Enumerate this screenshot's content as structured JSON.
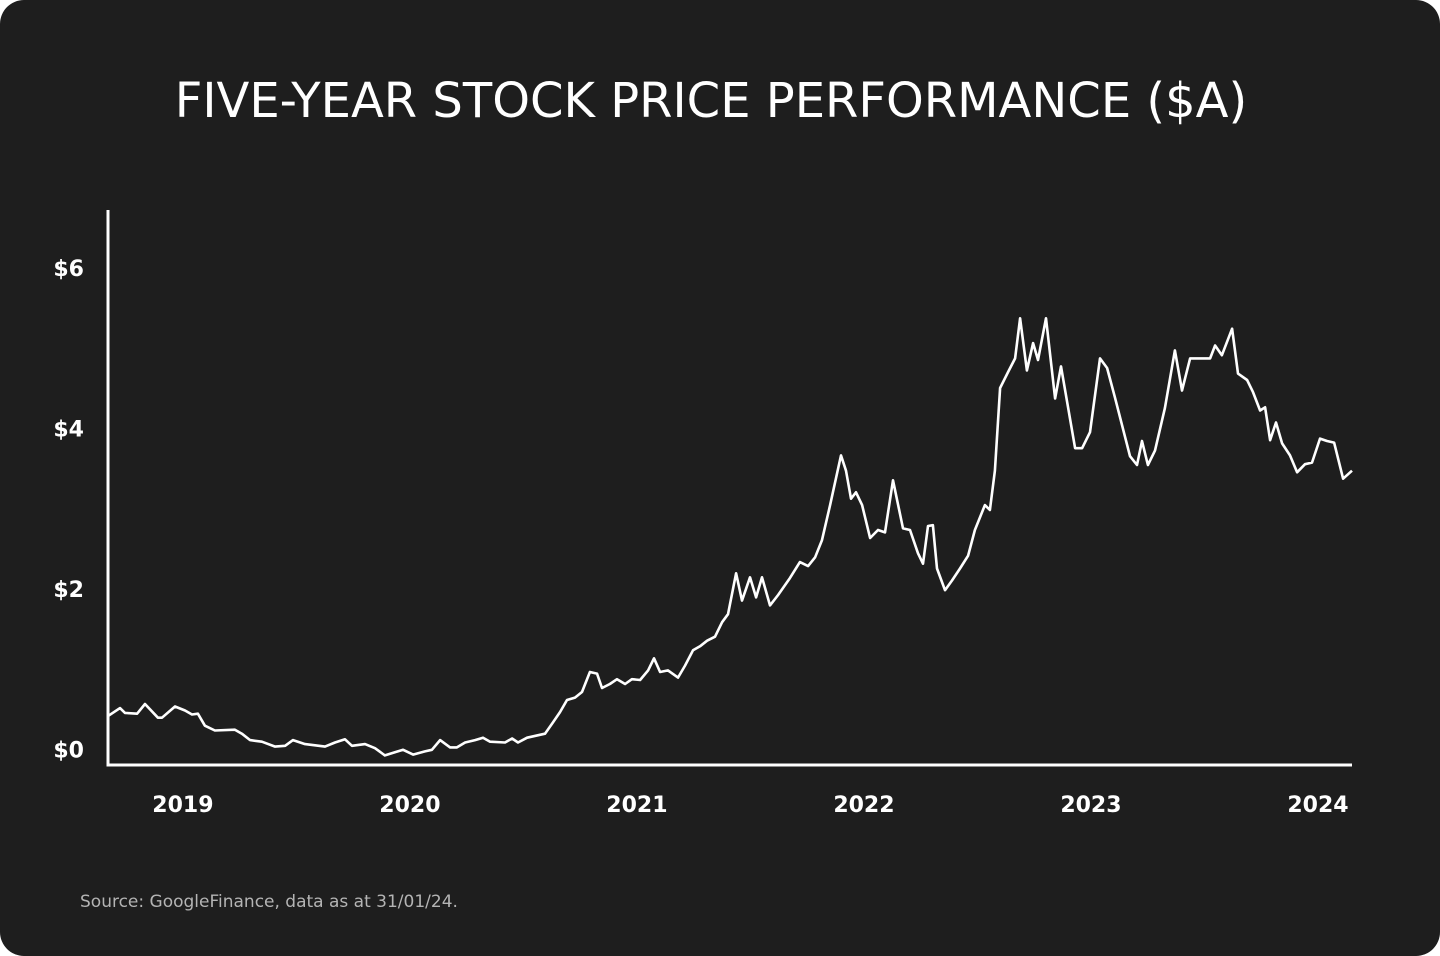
{
  "chart_data": {
    "type": "line",
    "title": "FIVE-YEAR STOCK PRICE PERFORMANCE ($A)",
    "source": "Source: GoogleFinance, data as at 31/01/24.",
    "color": "#ffffff",
    "xlim": [
      2018.67,
      2024.15
    ],
    "xticks": [
      2019,
      2020,
      2021,
      2022,
      2023,
      2024
    ],
    "ylim": [
      -0.17,
      6.75
    ],
    "yticks": [
      {
        "value": 0,
        "label": "$0"
      },
      {
        "value": 2,
        "label": "$2"
      },
      {
        "value": 4,
        "label": "$4"
      },
      {
        "value": 6,
        "label": "$6"
      }
    ],
    "grid": false,
    "x": [
      2018.67,
      2018.723,
      2018.745,
      2018.798,
      2018.833,
      2018.89,
      2018.908,
      2018.965,
      2019.009,
      2019.04,
      2019.066,
      2019.097,
      2019.141,
      2019.229,
      2019.26,
      2019.296,
      2019.348,
      2019.406,
      2019.45,
      2019.485,
      2019.538,
      2019.626,
      2019.67,
      2019.714,
      2019.745,
      2019.802,
      2019.846,
      2019.89,
      2019.934,
      2019.97,
      2020.014,
      2020.066,
      2020.097,
      2020.133,
      2020.177,
      2020.207,
      2020.243,
      2020.287,
      2020.322,
      2020.353,
      2020.419,
      2020.45,
      2020.476,
      2020.516,
      2020.595,
      2020.63,
      2020.661,
      2020.692,
      2020.727,
      2020.758,
      2020.793,
      2020.824,
      2020.846,
      2020.881,
      2020.912,
      2020.948,
      2020.978,
      2021.014,
      2021.049,
      2021.075,
      2021.102,
      2021.137,
      2021.181,
      2021.212,
      2021.247,
      2021.278,
      2021.309,
      2021.344,
      2021.375,
      2021.401,
      2021.437,
      2021.463,
      2021.498,
      2021.525,
      2021.551,
      2021.586,
      2021.622,
      2021.674,
      2021.718,
      2021.754,
      2021.785,
      2021.815,
      2021.851,
      2021.899,
      2021.921,
      2021.943,
      2021.965,
      2021.992,
      2022.027,
      2022.062,
      2022.093,
      2022.128,
      2022.172,
      2022.203,
      2022.238,
      2022.26,
      2022.282,
      2022.304,
      2022.322,
      2022.357,
      2022.388,
      2022.423,
      2022.459,
      2022.489,
      2022.533,
      2022.555,
      2022.577,
      2022.6,
      2022.635,
      2022.666,
      2022.688,
      2022.718,
      2022.745,
      2022.767,
      2022.802,
      2022.842,
      2022.868,
      2022.93,
      2022.961,
      2022.996,
      2023.04,
      2023.071,
      2023.106,
      2023.172,
      2023.203,
      2023.225,
      2023.251,
      2023.282,
      2023.326,
      2023.37,
      2023.401,
      2023.437,
      2023.481,
      2023.525,
      2023.547,
      2023.577,
      2023.622,
      2023.648,
      2023.688,
      2023.714,
      2023.745,
      2023.767,
      2023.789,
      2023.815,
      2023.842,
      2023.877,
      2023.908,
      2023.943,
      2023.974,
      2024.009,
      2024.04,
      2024.071,
      2024.111,
      2024.15
    ],
    "values": [
      0.44,
      0.54,
      0.48,
      0.47,
      0.59,
      0.42,
      0.42,
      0.56,
      0.51,
      0.46,
      0.47,
      0.32,
      0.26,
      0.27,
      0.22,
      0.14,
      0.12,
      0.06,
      0.07,
      0.14,
      0.09,
      0.06,
      0.11,
      0.15,
      0.07,
      0.09,
      0.04,
      -0.05,
      -0.01,
      0.02,
      -0.04,
      0.0,
      0.02,
      0.14,
      0.05,
      0.05,
      0.11,
      0.14,
      0.17,
      0.12,
      0.11,
      0.16,
      0.11,
      0.17,
      0.22,
      0.36,
      0.49,
      0.64,
      0.67,
      0.74,
      0.99,
      0.97,
      0.79,
      0.84,
      0.9,
      0.84,
      0.9,
      0.89,
      1.01,
      1.16,
      0.99,
      1.01,
      0.92,
      1.07,
      1.26,
      1.31,
      1.38,
      1.43,
      1.61,
      1.71,
      2.22,
      1.88,
      2.17,
      1.92,
      2.17,
      1.82,
      1.95,
      2.16,
      2.36,
      2.31,
      2.42,
      2.63,
      3.07,
      3.69,
      3.5,
      3.15,
      3.23,
      3.07,
      2.66,
      2.76,
      2.73,
      3.38,
      2.78,
      2.76,
      2.47,
      2.34,
      2.81,
      2.82,
      2.28,
      2.01,
      2.13,
      2.28,
      2.44,
      2.76,
      3.07,
      3.01,
      3.5,
      4.53,
      4.73,
      4.9,
      5.4,
      4.75,
      5.09,
      4.88,
      5.4,
      4.4,
      4.8,
      3.78,
      3.78,
      3.98,
      4.9,
      4.78,
      4.41,
      3.68,
      3.57,
      3.87,
      3.57,
      3.75,
      4.28,
      5.0,
      4.5,
      4.9,
      4.9,
      4.9,
      5.06,
      4.94,
      5.27,
      4.71,
      4.63,
      4.48,
      4.25,
      4.29,
      3.88,
      4.1,
      3.84,
      3.69,
      3.48,
      3.58,
      3.6,
      3.9,
      3.87,
      3.85,
      3.4,
      3.5
    ]
  }
}
